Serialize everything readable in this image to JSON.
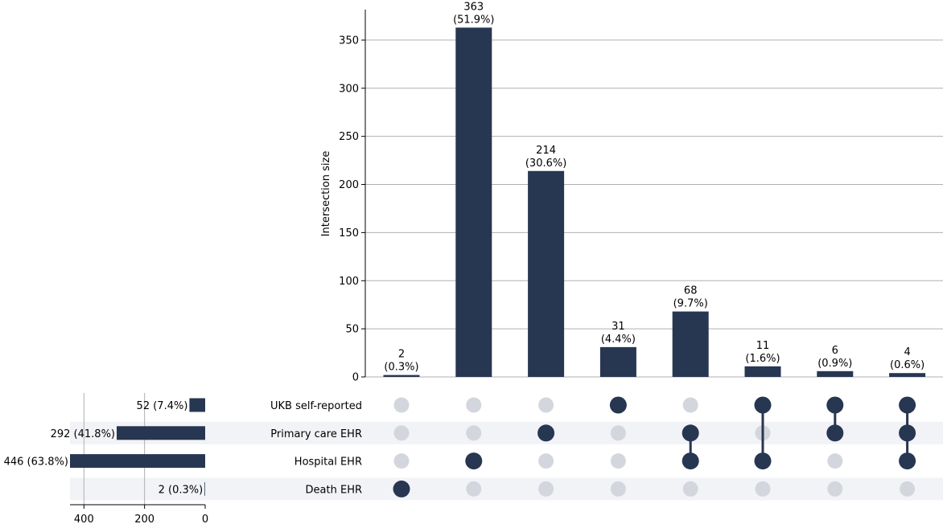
{
  "chart_data": {
    "type": "upset",
    "colors": {
      "bar": "#273651",
      "dot_active": "#273651",
      "dot_inactive": "#d3d6dc",
      "stripe": "#f2f3f6",
      "grid": "#b0b0b0"
    },
    "ylabel": "Intersection size",
    "ylim": [
      0,
      380
    ],
    "yticks": [
      "0",
      "50",
      "100",
      "150",
      "200",
      "250",
      "300",
      "350"
    ],
    "sets": [
      {
        "name": "UKB self-reported",
        "size": 52,
        "label": "52 (7.4%)"
      },
      {
        "name": "Primary care EHR",
        "size": 292,
        "label": "292 (41.8%)"
      },
      {
        "name": "Hospital EHR",
        "size": 446,
        "label": "446 (63.8%)"
      },
      {
        "name": "Death EHR",
        "size": 2,
        "label": "2 (0.3%)"
      }
    ],
    "set_size_xlim": [
      0,
      446
    ],
    "set_size_ticks": [
      "400",
      "200",
      "0"
    ],
    "intersections": [
      {
        "value": 2,
        "count_label": "2",
        "pct_label": "(0.3%)",
        "members": [
          3
        ]
      },
      {
        "value": 363,
        "count_label": "363",
        "pct_label": "(51.9%)",
        "members": [
          2
        ]
      },
      {
        "value": 214,
        "count_label": "214",
        "pct_label": "(30.6%)",
        "members": [
          1
        ]
      },
      {
        "value": 31,
        "count_label": "31",
        "pct_label": "(4.4%)",
        "members": [
          0
        ]
      },
      {
        "value": 68,
        "count_label": "68",
        "pct_label": "(9.7%)",
        "members": [
          1,
          2
        ]
      },
      {
        "value": 11,
        "count_label": "11",
        "pct_label": "(1.6%)",
        "members": [
          0,
          2
        ]
      },
      {
        "value": 6,
        "count_label": "6",
        "pct_label": "(0.9%)",
        "members": [
          0,
          1
        ]
      },
      {
        "value": 4,
        "count_label": "4",
        "pct_label": "(0.6%)",
        "members": [
          0,
          1,
          2
        ]
      }
    ]
  }
}
